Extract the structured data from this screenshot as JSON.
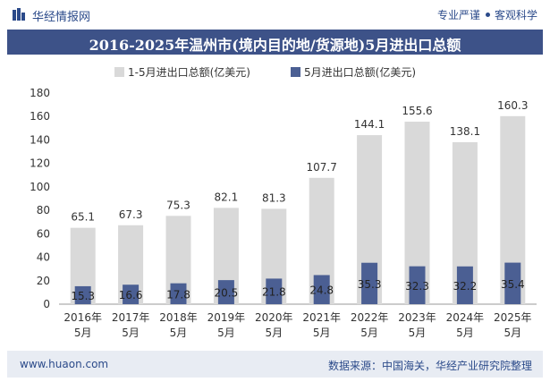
{
  "header": {
    "brand": "华经情报网",
    "tagline_left": "专业严谨",
    "tagline_right": "客观科学"
  },
  "title": "2016-2025年温州市(境内目的地/货源地)5月进出口总额",
  "footer": {
    "site": "www.huaon.com",
    "source": "数据来源：中国海关，华经产业研究院整理"
  },
  "colors": {
    "accent": "#3d5288",
    "series1": "#d9d9d9",
    "series2": "#4b5f93"
  },
  "chart_data": {
    "type": "bar",
    "categories": [
      [
        "2016年",
        "5月"
      ],
      [
        "2017年",
        "5月"
      ],
      [
        "2018年",
        "5月"
      ],
      [
        "2019年",
        "5月"
      ],
      [
        "2020年",
        "5月"
      ],
      [
        "2021年",
        "5月"
      ],
      [
        "2022年",
        "5月"
      ],
      [
        "2023年",
        "5月"
      ],
      [
        "2024年",
        "5月"
      ],
      [
        "2025年",
        "5月"
      ]
    ],
    "series": [
      {
        "name": "1-5月进出口总额(亿美元)",
        "values": [
          65.1,
          67.3,
          75.3,
          82.1,
          81.3,
          107.7,
          144.1,
          155.6,
          138.1,
          160.3
        ]
      },
      {
        "name": "5月进出口总额(亿美元)",
        "values": [
          15.3,
          16.6,
          17.8,
          20.5,
          21.8,
          24.8,
          35.3,
          32.3,
          32.2,
          35.4
        ]
      }
    ],
    "ylim": [
      0,
      180
    ],
    "yticks": [
      0,
      20,
      40,
      60,
      80,
      100,
      120,
      140,
      160,
      180
    ],
    "legend_position": "top",
    "grid": false
  }
}
